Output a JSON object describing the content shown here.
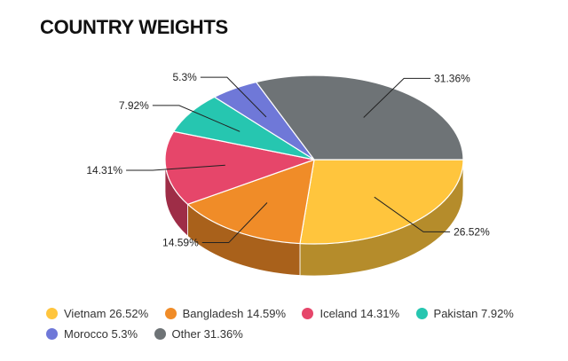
{
  "chart_data": {
    "type": "pie",
    "title": "COUNTRY WEIGHTS",
    "slices": [
      {
        "name": "Vietnam",
        "value": 26.52,
        "label": "26.52%",
        "legend": "Vietnam 26.52%",
        "color": "#FFC53D",
        "dark": "#B58C2B"
      },
      {
        "name": "Bangladesh",
        "value": 14.59,
        "label": "14.59%",
        "legend": "Bangladesh 14.59%",
        "color": "#F08C28",
        "dark": "#A9611B"
      },
      {
        "name": "Iceland",
        "value": 14.31,
        "label": "14.31%",
        "legend": "Iceland 14.31%",
        "color": "#E6466A",
        "dark": "#9E2D47"
      },
      {
        "name": "Pakistan",
        "value": 7.92,
        "label": "7.92%",
        "legend": "Pakistan 7.92%",
        "color": "#26C6B0",
        "dark": "#1B8C7D"
      },
      {
        "name": "Morocco",
        "value": 5.3,
        "label": "5.3%",
        "legend": "Morocco 5.3%",
        "color": "#6F78D8",
        "dark": "#4E559A"
      },
      {
        "name": "Other",
        "value": 31.36,
        "label": "31.36%",
        "legend": "Other 31.36%",
        "color": "#6E7376",
        "dark": "#4E5254"
      }
    ]
  }
}
